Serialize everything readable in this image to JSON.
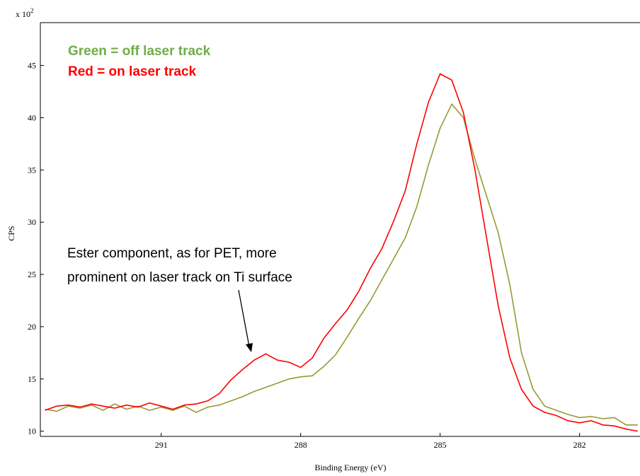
{
  "chart_data": {
    "type": "line",
    "y_axis_label": "CPS",
    "y_multiplier": {
      "base": "x 10",
      "exponent": "2"
    },
    "x_axis_label": "Binding Energy (eV)",
    "annotations": {
      "legend_green": "Green = off laser track",
      "legend_red": "Red = on laser track",
      "note_line1": "Ester component, as for PET, more",
      "note_line2": "prominent on laser track on Ti surface"
    },
    "xlim": [
      293.6,
      280.7
    ],
    "ylim": [
      9.5,
      49.1
    ],
    "xticks": [
      291,
      288,
      285,
      282
    ],
    "yticks": [
      10,
      15,
      20,
      25,
      30,
      35,
      40,
      45
    ],
    "x": [
      293.5,
      293.25,
      293.0,
      292.75,
      292.5,
      292.25,
      292.0,
      291.75,
      291.5,
      291.25,
      291.0,
      290.75,
      290.5,
      290.25,
      290.0,
      289.75,
      289.5,
      289.25,
      289.0,
      288.75,
      288.5,
      288.25,
      288.0,
      287.75,
      287.5,
      287.25,
      287.0,
      286.75,
      286.5,
      286.25,
      286.0,
      285.75,
      285.5,
      285.25,
      285.0,
      284.75,
      284.5,
      284.25,
      284.0,
      283.75,
      283.5,
      283.25,
      283.0,
      282.75,
      282.5,
      282.25,
      282.0,
      281.75,
      281.5,
      281.25,
      281.0,
      280.75
    ],
    "series": [
      {
        "color": "#999933",
        "values": [
          12.1,
          11.9,
          12.4,
          12.2,
          12.5,
          12.0,
          12.6,
          12.1,
          12.4,
          12.0,
          12.3,
          12.0,
          12.4,
          11.8,
          12.3,
          12.5,
          12.9,
          13.3,
          13.8,
          14.2,
          14.6,
          15.0,
          15.2,
          15.3,
          16.2,
          17.3,
          19.0,
          20.8,
          22.5,
          24.5,
          26.5,
          28.5,
          31.5,
          35.5,
          39.0,
          41.3,
          40.0,
          36.0,
          32.5,
          29.0,
          24.0,
          17.5,
          14.0,
          12.4,
          12.0,
          11.6,
          11.3,
          11.4,
          11.2,
          11.3,
          10.6,
          10.6
        ]
      },
      {
        "color": "#ff0000",
        "values": [
          12.0,
          12.4,
          12.5,
          12.3,
          12.6,
          12.4,
          12.2,
          12.5,
          12.3,
          12.7,
          12.4,
          12.1,
          12.5,
          12.6,
          12.9,
          13.6,
          14.9,
          15.9,
          16.8,
          17.4,
          16.8,
          16.6,
          16.1,
          17.0,
          18.9,
          20.3,
          21.6,
          23.4,
          25.6,
          27.5,
          30.1,
          33.0,
          37.5,
          41.5,
          44.2,
          43.6,
          40.5,
          35.0,
          28.5,
          22.0,
          17.0,
          14.0,
          12.4,
          11.8,
          11.5,
          11.0,
          10.8,
          11.0,
          10.6,
          10.5,
          10.2,
          10.0
        ]
      }
    ]
  }
}
